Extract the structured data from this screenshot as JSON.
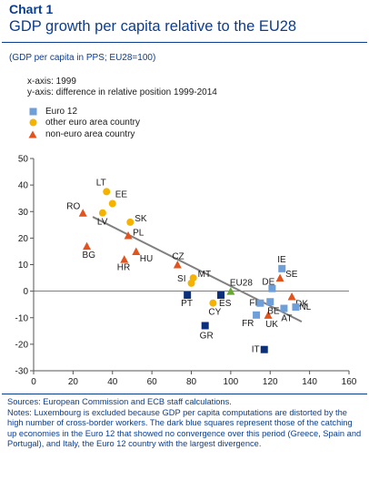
{
  "header": {
    "chart_label": "Chart 1",
    "title": "GDP growth per capita relative to the EU28",
    "subtitle": "(GDP per capita in PPS; EU28=100)",
    "x_note": "x-axis: 1999",
    "y_note": "y-axis: difference in relative position 1999-2014"
  },
  "legend": [
    {
      "label": "Euro 12",
      "marker": "square",
      "color": "#6f9fd8"
    },
    {
      "label": "other euro area country",
      "marker": "circle",
      "color": "#f5b300"
    },
    {
      "label": "non-euro area country",
      "marker": "triangle",
      "color": "#e2531d"
    }
  ],
  "colors": {
    "euro12": "#6f9fd8",
    "euro12_dark": "#0b2f7a",
    "other_euro": "#f5b300",
    "non_euro": "#e2531d",
    "eu28": "#66a832",
    "trend": "#808080",
    "title_blue": "#0b3d91"
  },
  "chart_data": {
    "type": "scatter",
    "xlim": [
      0,
      160
    ],
    "ylim": [
      -30,
      50
    ],
    "x_ticks": [
      0,
      20,
      40,
      60,
      80,
      100,
      120,
      140,
      160
    ],
    "y_ticks": [
      -30,
      -20,
      -10,
      0,
      10,
      20,
      30,
      40,
      50
    ],
    "grid": false,
    "legend_position": "top-left",
    "trend_line": [
      [
        30,
        28
      ],
      [
        136,
        -11.5
      ]
    ],
    "points": [
      {
        "label": "LT",
        "x": 37,
        "y": 37.5,
        "group": "other_euro"
      },
      {
        "label": "EE",
        "x": 40,
        "y": 33,
        "group": "other_euro"
      },
      {
        "label": "LV",
        "x": 35,
        "y": 29.5,
        "group": "other_euro"
      },
      {
        "label": "SK",
        "x": 49,
        "y": 26,
        "group": "other_euro"
      },
      {
        "label": "SI",
        "x": 80,
        "y": 3,
        "group": "other_euro"
      },
      {
        "label": "MT",
        "x": 81,
        "y": 5,
        "group": "other_euro"
      },
      {
        "label": "CY",
        "x": 91,
        "y": -4.5,
        "group": "other_euro"
      },
      {
        "label": "RO",
        "x": 25,
        "y": 29.5,
        "group": "non_euro"
      },
      {
        "label": "BG",
        "x": 27,
        "y": 17,
        "group": "non_euro"
      },
      {
        "label": "PL",
        "x": 48,
        "y": 21,
        "group": "non_euro"
      },
      {
        "label": "HR",
        "x": 46,
        "y": 12,
        "group": "non_euro"
      },
      {
        "label": "HU",
        "x": 52,
        "y": 15,
        "group": "non_euro"
      },
      {
        "label": "CZ",
        "x": 73,
        "y": 10,
        "group": "non_euro"
      },
      {
        "label": "SE",
        "x": 125,
        "y": 5,
        "group": "non_euro"
      },
      {
        "label": "DK",
        "x": 131,
        "y": -2,
        "group": "non_euro"
      },
      {
        "label": "UK",
        "x": 119,
        "y": -9,
        "group": "non_euro"
      },
      {
        "label": "IE",
        "x": 126,
        "y": 8.5,
        "group": "euro12"
      },
      {
        "label": "DE",
        "x": 121,
        "y": 1,
        "group": "euro12"
      },
      {
        "label": "FI",
        "x": 115,
        "y": -4.5,
        "group": "euro12"
      },
      {
        "label": "BE",
        "x": 120,
        "y": -4,
        "group": "euro12"
      },
      {
        "label": "FR",
        "x": 113,
        "y": -9,
        "group": "euro12"
      },
      {
        "label": "AT",
        "x": 127,
        "y": -6.5,
        "group": "euro12"
      },
      {
        "label": "NL",
        "x": 133,
        "y": -6,
        "group": "euro12"
      },
      {
        "label": "PT",
        "x": 78,
        "y": -1.5,
        "group": "euro12_dark"
      },
      {
        "label": "ES",
        "x": 95,
        "y": -1.5,
        "group": "euro12_dark"
      },
      {
        "label": "GR",
        "x": 87,
        "y": -13,
        "group": "euro12_dark"
      },
      {
        "label": "IT",
        "x": 117,
        "y": -22,
        "group": "euro12_dark"
      },
      {
        "label": "EU28",
        "x": 100,
        "y": 0,
        "group": "eu28"
      }
    ]
  },
  "footnote": {
    "sources": "Sources: European Commission and ECB staff calculations.",
    "notes": "Notes: Luxembourg is excluded because GDP per capita computations are distorted by the high number of cross-border workers. The dark blue squares represent those of the catching up economies in the Euro 12 that showed no convergence over this period (Greece, Spain and Portugal), and Italy, the Euro 12 country with the largest divergence."
  }
}
